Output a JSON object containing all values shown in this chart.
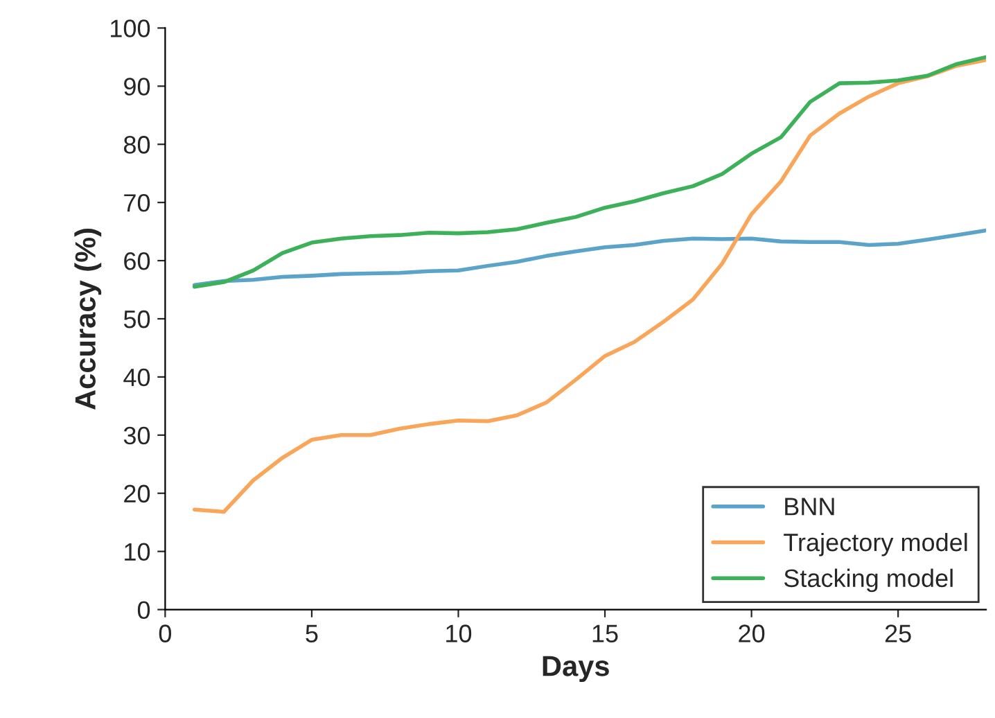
{
  "chart_data": {
    "type": "line",
    "xlabel": "Days",
    "ylabel": "Accuracy (%)",
    "x": [
      1,
      2,
      3,
      4,
      5,
      6,
      7,
      8,
      9,
      10,
      11,
      12,
      13,
      14,
      15,
      16,
      17,
      18,
      19,
      20,
      21,
      22,
      23,
      24,
      25,
      26,
      27,
      28
    ],
    "series": [
      {
        "name": "BNN",
        "color": "#5ba3c9",
        "values": [
          55.8,
          56.5,
          56.7,
          57.2,
          57.4,
          57.7,
          57.8,
          57.9,
          58.2,
          58.3,
          59.1,
          59.8,
          60.8,
          61.6,
          62.3,
          62.7,
          63.4,
          63.8,
          63.7,
          63.8,
          63.3,
          63.2,
          63.2,
          62.7,
          62.9,
          63.6,
          64.4,
          65.2
        ]
      },
      {
        "name": "Trajectory model",
        "color": "#f9a65a",
        "values": [
          17.2,
          16.8,
          22.2,
          26.1,
          29.2,
          30.0,
          30.0,
          31.1,
          31.9,
          32.5,
          32.4,
          33.4,
          35.6,
          39.5,
          43.6,
          46.0,
          49.5,
          53.3,
          59.5,
          68.0,
          73.6,
          81.5,
          85.3,
          88.2,
          90.5,
          91.7,
          93.5,
          94.5
        ]
      },
      {
        "name": "Stacking model",
        "color": "#3cb15a",
        "values": [
          55.5,
          56.3,
          58.3,
          61.3,
          63.1,
          63.8,
          64.2,
          64.4,
          64.8,
          64.7,
          64.9,
          65.4,
          66.5,
          67.5,
          69.1,
          70.2,
          71.6,
          72.8,
          74.9,
          78.4,
          81.2,
          87.3,
          90.5,
          90.6,
          91.0,
          91.8,
          93.8,
          95.0
        ]
      }
    ],
    "xlim": [
      0,
      28
    ],
    "xticks": [
      0,
      5,
      10,
      15,
      20,
      25
    ],
    "ylim": [
      0,
      100
    ],
    "yticks": [
      0,
      10,
      20,
      30,
      40,
      50,
      60,
      70,
      80,
      90,
      100
    ],
    "grid": false,
    "legend": "bottom right",
    "marker": "none",
    "line_style": "solid"
  }
}
